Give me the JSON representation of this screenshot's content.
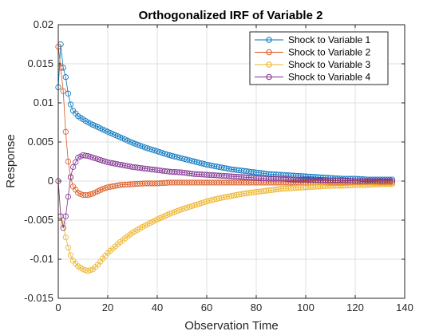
{
  "chart_data": {
    "type": "line",
    "title": "Orthogonalized IRF of Variable 2",
    "xlabel": "Observation Time",
    "ylabel": "Response",
    "xlim": [
      0,
      140
    ],
    "ylim": [
      -0.015,
      0.02
    ],
    "x_ticks": [
      0,
      20,
      40,
      60,
      80,
      100,
      120,
      140
    ],
    "x_tick_labels": [
      "0",
      "20",
      "40",
      "60",
      "80",
      "100",
      "120",
      "140"
    ],
    "y_ticks": [
      -0.015,
      -0.01,
      -0.005,
      0,
      0.005,
      0.01,
      0.015,
      0.02
    ],
    "y_tick_labels": [
      "-0.015",
      "-0.01",
      "-0.005",
      "0",
      "0.005",
      "0.01",
      "0.015",
      "0.02"
    ],
    "grid": true,
    "legend_position": "top-right",
    "marker": "circle",
    "x": [
      0,
      1,
      2,
      3,
      4,
      5,
      6,
      8,
      10,
      12,
      14,
      16,
      18,
      20,
      25,
      30,
      35,
      40,
      45,
      50,
      55,
      60,
      65,
      70,
      75,
      80,
      85,
      90,
      95,
      100,
      105,
      110,
      115,
      120,
      125,
      130,
      135
    ],
    "series": [
      {
        "name": "Shock to Variable 1",
        "color": "#0072BD",
        "values": [
          0.012,
          0.0175,
          0.0145,
          0.0133,
          0.0112,
          0.0098,
          0.009,
          0.0083,
          0.0079,
          0.0075,
          0.0072,
          0.0069,
          0.0066,
          0.0063,
          0.0056,
          0.0049,
          0.0043,
          0.0038,
          0.0033,
          0.0029,
          0.0025,
          0.0021,
          0.0018,
          0.0015,
          0.0013,
          0.0011,
          0.0009,
          0.0008,
          0.0007,
          0.0006,
          0.0005,
          0.0004,
          0.0003,
          0.0003,
          0.0002,
          0.0002,
          0.0002
        ]
      },
      {
        "name": "Shock to Variable 2",
        "color": "#D95319",
        "values": [
          0.0172,
          0.0145,
          0.0115,
          0.0063,
          0.0025,
          0.0005,
          -0.0007,
          -0.0015,
          -0.0018,
          -0.0018,
          -0.0016,
          -0.0013,
          -0.001,
          -0.0008,
          -0.0005,
          -0.0004,
          -0.0003,
          -0.0003,
          -0.0002,
          -0.0002,
          -0.0002,
          -0.0002,
          -0.0002,
          -0.0002,
          -0.0002,
          -0.0002,
          -0.0002,
          -0.0002,
          -0.0002,
          -0.0002,
          -0.0002,
          -0.0002,
          -0.0002,
          -0.0002,
          -0.0002,
          -0.0002,
          -0.0002
        ]
      },
      {
        "name": "Shock to Variable 3",
        "color": "#EDB120",
        "values": [
          0,
          -0.0045,
          -0.0055,
          -0.0072,
          -0.0085,
          -0.0095,
          -0.0102,
          -0.0109,
          -0.0113,
          -0.0115,
          -0.0113,
          -0.0107,
          -0.0099,
          -0.0092,
          -0.0078,
          -0.0066,
          -0.0057,
          -0.0049,
          -0.0042,
          -0.0036,
          -0.0031,
          -0.0026,
          -0.0022,
          -0.0019,
          -0.0016,
          -0.0014,
          -0.0012,
          -0.001,
          -0.0009,
          -0.0008,
          -0.0007,
          -0.0006,
          -0.0006,
          -0.0005,
          -0.0005,
          -0.0004,
          -0.0004
        ]
      },
      {
        "name": "Shock to Variable 4",
        "color": "#7E2F8E",
        "values": [
          0,
          -0.0045,
          -0.006,
          -0.0045,
          -0.002,
          0.0005,
          0.0018,
          0.003,
          0.0033,
          0.0032,
          0.003,
          0.0028,
          0.0026,
          0.0024,
          0.0021,
          0.0018,
          0.0016,
          0.0014,
          0.0012,
          0.0011,
          0.0009,
          0.0008,
          0.0007,
          0.0006,
          0.0005,
          0.0004,
          0.0003,
          0.0003,
          0.0002,
          0.0002,
          0.0001,
          0.0001,
          0.0001,
          0.0,
          0.0,
          0.0,
          0.0
        ]
      }
    ]
  }
}
